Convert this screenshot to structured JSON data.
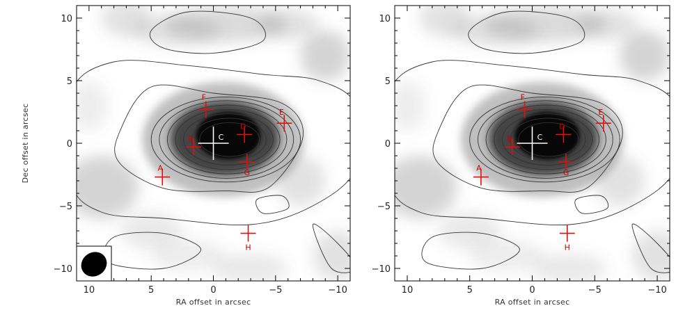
{
  "chart_data": [
    {
      "type": "contour",
      "xlabel": "RA offset in arcsec",
      "ylabel": "Dec offset in arcsec",
      "xlim": [
        11,
        -11
      ],
      "ylim": [
        -11,
        11
      ],
      "xticks": [
        10,
        5,
        0,
        -5,
        -10
      ],
      "yticks": [
        10,
        5,
        0,
        -5,
        -10
      ],
      "xtick_labels": [
        "10",
        "5",
        "0",
        "−5",
        "−10"
      ],
      "ytick_labels": [
        "10",
        "5",
        "0",
        "−5",
        "−10"
      ],
      "center": {
        "label": "C",
        "x": 0,
        "y": 0
      },
      "sources": [
        {
          "label": "A",
          "x": 4.1,
          "y": -2.7
        },
        {
          "label": "B",
          "x": 1.6,
          "y": -0.3
        },
        {
          "label": "C",
          "x": 0,
          "y": 0
        },
        {
          "label": "D",
          "x": -2.5,
          "y": 0.7
        },
        {
          "label": "E",
          "x": -5.7,
          "y": 1.6
        },
        {
          "label": "F",
          "x": 0.6,
          "y": 2.7
        },
        {
          "label": "G",
          "x": -2.7,
          "y": -1.5
        },
        {
          "label": "H",
          "x": -2.8,
          "y": -7.2
        }
      ],
      "beam": true
    },
    {
      "type": "contour",
      "xlabel": "RA offset in arcsec",
      "ylabel": "",
      "xlim": [
        11,
        -11
      ],
      "ylim": [
        -11,
        11
      ],
      "xticks": [
        10,
        5,
        0,
        -5,
        -10
      ],
      "yticks": [
        10,
        5,
        0,
        -5,
        -10
      ],
      "xtick_labels": [
        "10",
        "5",
        "0",
        "−5",
        "−10"
      ],
      "ytick_labels": [
        "10",
        "5",
        "0",
        "−5",
        "−10"
      ],
      "center": {
        "label": "C",
        "x": 0,
        "y": 0
      },
      "sources": [
        {
          "label": "A",
          "x": 4.1,
          "y": -2.7
        },
        {
          "label": "B",
          "x": 1.6,
          "y": -0.3
        },
        {
          "label": "C",
          "x": 0,
          "y": 0
        },
        {
          "label": "D",
          "x": -2.5,
          "y": 0.7
        },
        {
          "label": "E",
          "x": -5.7,
          "y": 1.6
        },
        {
          "label": "F",
          "x": 0.6,
          "y": 2.7
        },
        {
          "label": "G",
          "x": -2.7,
          "y": -1.5
        },
        {
          "label": "H",
          "x": -2.8,
          "y": -7.2
        }
      ],
      "beam": false
    }
  ],
  "colors": {
    "marker": "#dd1111",
    "contour": "#333333",
    "frame": "#000000"
  }
}
